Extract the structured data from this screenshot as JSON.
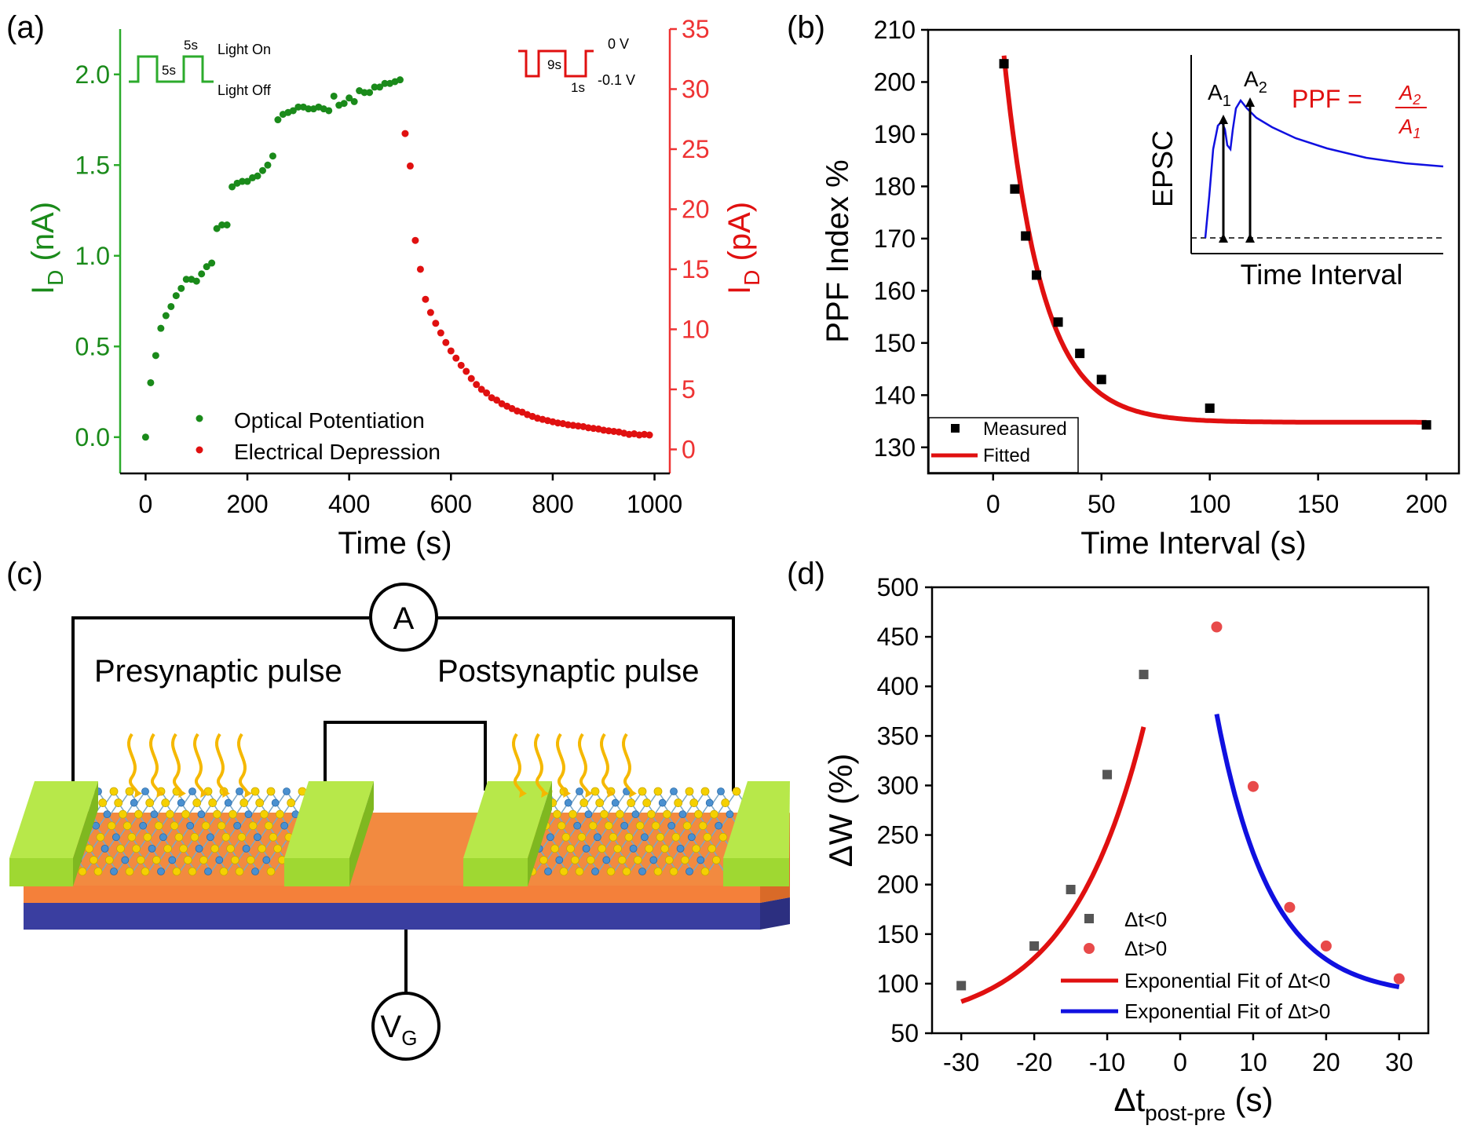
{
  "colors": {
    "green": "#1a8a1a",
    "green_axis": "#2cab2c",
    "red": "#e01010",
    "red_axis": "#ee3333",
    "blue": "#1010e0",
    "black": "#000000",
    "gold": "#f5b800",
    "lime": "#9fd832",
    "orange": "#f4803a",
    "navy": "#3a3ea0"
  },
  "panels": {
    "a": "(a)",
    "b": "(b)",
    "c": "(c)",
    "d": "(d)"
  },
  "chart_data": [
    {
      "id": "a",
      "type": "scatter",
      "xlabel": "Time (s)",
      "ylabel_left": "I",
      "ylabel_left_sub": "D",
      "ylabel_left_unit": " (nA)",
      "ylabel_right": "I",
      "ylabel_right_sub": "D",
      "ylabel_right_unit": " (pA)",
      "xlim": [
        -50,
        1030
      ],
      "ylim_left": [
        -0.2,
        2.25
      ],
      "ylim_right": [
        -2,
        35
      ],
      "xticks": [
        0,
        200,
        400,
        600,
        800,
        1000
      ],
      "yticks_left": [
        0.0,
        0.5,
        1.0,
        1.5,
        2.0
      ],
      "yticks_left_labels": [
        "0.0",
        "0.5",
        "1.0",
        "1.5",
        "2.0"
      ],
      "yticks_right": [
        0,
        5,
        10,
        15,
        20,
        25,
        30,
        35
      ],
      "inset_optical": {
        "high": "Light On",
        "low": "Light Off",
        "on_time": "5s",
        "off_time": "5s"
      },
      "inset_electrical": {
        "high": "0 V",
        "low": "-0.1 V",
        "off_time": "9s",
        "on_time": "1s"
      },
      "series": [
        {
          "name": "Optical Potentiation",
          "axis": "left",
          "x": [
            0,
            10,
            20,
            30,
            40,
            50,
            60,
            70,
            80,
            90,
            100,
            110,
            120,
            130,
            140,
            150,
            160,
            170,
            180,
            190,
            200,
            210,
            220,
            230,
            240,
            250,
            260,
            270,
            280,
            290,
            300,
            310,
            320,
            330,
            340,
            350,
            360,
            370,
            380,
            390,
            400,
            410,
            420,
            430,
            440,
            450,
            460,
            470,
            480,
            490,
            500
          ],
          "y": [
            0.0,
            0.3,
            0.45,
            0.6,
            0.67,
            0.72,
            0.78,
            0.82,
            0.87,
            0.87,
            0.86,
            0.9,
            0.94,
            0.96,
            1.15,
            1.17,
            1.17,
            1.38,
            1.4,
            1.41,
            1.41,
            1.43,
            1.44,
            1.47,
            1.5,
            1.55,
            1.75,
            1.78,
            1.79,
            1.8,
            1.82,
            1.82,
            1.81,
            1.81,
            1.82,
            1.81,
            1.8,
            1.88,
            1.83,
            1.84,
            1.87,
            1.85,
            1.91,
            1.9,
            1.9,
            1.93,
            1.93,
            1.95,
            1.95,
            1.96,
            1.97
          ]
        },
        {
          "name": "Electrical Depression",
          "axis": "right",
          "x": [
            510,
            520,
            530,
            540,
            550,
            560,
            570,
            580,
            590,
            600,
            610,
            620,
            630,
            640,
            650,
            660,
            670,
            680,
            690,
            700,
            710,
            720,
            730,
            740,
            750,
            760,
            770,
            780,
            790,
            800,
            810,
            820,
            830,
            840,
            850,
            860,
            870,
            880,
            890,
            900,
            910,
            920,
            930,
            940,
            950,
            960,
            970,
            980,
            990
          ],
          "y": [
            26.3,
            23.6,
            17.4,
            15.0,
            12.5,
            11.4,
            10.5,
            9.7,
            8.9,
            8.2,
            7.6,
            7.0,
            6.5,
            5.9,
            5.4,
            5.0,
            4.7,
            4.3,
            4.1,
            3.8,
            3.6,
            3.4,
            3.2,
            3.1,
            2.9,
            2.75,
            2.6,
            2.5,
            2.4,
            2.3,
            2.2,
            2.15,
            2.05,
            2.0,
            1.95,
            1.9,
            1.8,
            1.75,
            1.7,
            1.6,
            1.55,
            1.5,
            1.45,
            1.35,
            1.25,
            1.3,
            1.2,
            1.25,
            1.2
          ]
        }
      ]
    },
    {
      "id": "b",
      "type": "scatter",
      "xlabel": "Time Interval (s)",
      "ylabel": "PPF Index %",
      "xlim": [
        -30,
        215
      ],
      "ylim": [
        125,
        210
      ],
      "xticks": [
        0,
        50,
        100,
        150,
        200
      ],
      "yticks": [
        130,
        140,
        150,
        160,
        170,
        180,
        190,
        200,
        210
      ],
      "series": [
        {
          "name": "Measured",
          "x": [
            5,
            10,
            15,
            20,
            30,
            40,
            50,
            100,
            200
          ],
          "y": [
            203.5,
            179.5,
            170.5,
            163,
            154,
            148,
            143,
            137.5,
            134.3
          ]
        },
        {
          "name": "Fitted",
          "model": "y = 134.8 + 93.5*exp(-x/17.5)",
          "x_range": [
            5,
            200
          ]
        }
      ],
      "inset": {
        "ylabel": "EPSC",
        "xlabel": "Time Interval",
        "a1": "A",
        "a1_sub": "1",
        "a2": "A",
        "a2_sub": "2",
        "formula_lhs": "PPF =",
        "formula_num": "A",
        "formula_num_sub": "2",
        "formula_den": "A",
        "formula_den_sub": "1"
      }
    },
    {
      "id": "d",
      "type": "scatter",
      "xlabel": "Δt",
      "xlabel_sub": "post-pre",
      "xlabel_unit": " (s)",
      "ylabel": "ΔW (%)",
      "xlim": [
        -34,
        34
      ],
      "ylim": [
        50,
        500
      ],
      "xticks": [
        -30,
        -20,
        -10,
        0,
        10,
        20,
        30
      ],
      "yticks": [
        50,
        100,
        150,
        200,
        250,
        300,
        350,
        400,
        450,
        500
      ],
      "series": [
        {
          "name": "Δt<0",
          "x": [
            -30,
            -20,
            -15,
            -10,
            -5
          ],
          "y": [
            98,
            138,
            195,
            311,
            412
          ]
        },
        {
          "name": "Δt>0",
          "x": [
            5,
            10,
            15,
            20,
            30
          ],
          "y": [
            460,
            299,
            177,
            138,
            105
          ]
        },
        {
          "name": "Exponential Fit of Δt<0",
          "model": "y = 55 + 494*exp(x/10.3)",
          "x_range": [
            -30,
            -5
          ]
        },
        {
          "name": "Exponential Fit of Δt>0",
          "model": "y = 87 + 560*exp(-x/7.4)",
          "x_range": [
            5,
            30
          ]
        }
      ]
    }
  ],
  "schematic": {
    "ammeter": "A",
    "gate": "V",
    "gate_sub": "G",
    "pre_label": "Presynaptic pulse",
    "post_label": "Postsynaptic pulse"
  }
}
